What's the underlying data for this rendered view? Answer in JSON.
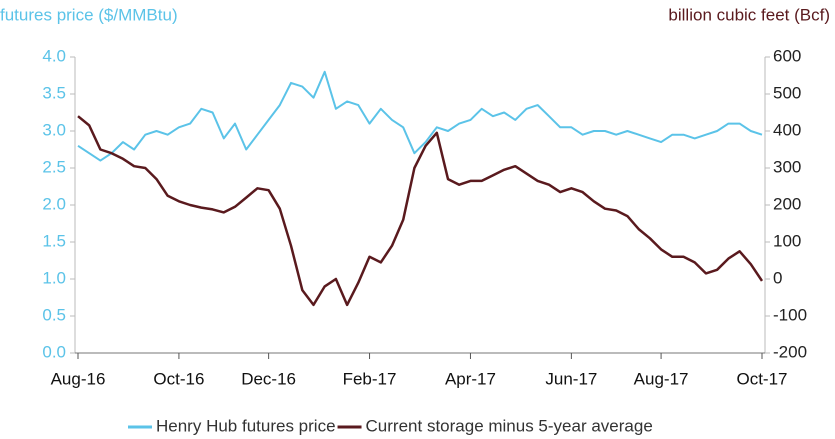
{
  "chart_data": {
    "type": "line",
    "y_label": "futures price ($/MMBtu)",
    "y2_label": "billion cubic feet (Bcf)",
    "categories": [
      "Aug-16",
      null,
      null,
      null,
      null,
      null,
      null,
      null,
      null,
      "Oct-16",
      null,
      null,
      null,
      null,
      null,
      null,
      null,
      "Dec-16",
      null,
      null,
      null,
      null,
      null,
      null,
      null,
      null,
      "Feb-17",
      null,
      null,
      null,
      null,
      null,
      null,
      null,
      null,
      "Apr-17",
      null,
      null,
      null,
      null,
      null,
      null,
      null,
      null,
      "Jun-17",
      null,
      null,
      null,
      null,
      null,
      null,
      null,
      "Aug-17",
      null,
      null,
      null,
      null,
      null,
      null,
      null,
      null,
      "Oct-17"
    ],
    "series": [
      {
        "name": "Henry Hub futures price",
        "color": "#5bc3e8",
        "axis": "y",
        "values": [
          2.8,
          2.7,
          2.6,
          2.7,
          2.85,
          2.75,
          2.95,
          3.0,
          2.95,
          3.05,
          3.1,
          3.3,
          3.25,
          2.9,
          3.1,
          2.75,
          2.95,
          3.15,
          3.35,
          3.65,
          3.6,
          3.45,
          3.8,
          3.3,
          3.4,
          3.35,
          3.1,
          3.3,
          3.15,
          3.05,
          2.7,
          2.85,
          3.05,
          3.0,
          3.1,
          3.15,
          3.3,
          3.2,
          3.25,
          3.15,
          3.3,
          3.35,
          3.2,
          3.05,
          3.05,
          2.95,
          3.0,
          3.0,
          2.95,
          3.0,
          2.95,
          2.9,
          2.85,
          2.95,
          2.95,
          2.9,
          2.95,
          3.0,
          3.1,
          3.1,
          3.0,
          2.95
        ]
      },
      {
        "name": "Current storage minus 5-year average",
        "color": "#5a1a1e",
        "axis": "y2",
        "values": [
          440,
          415,
          350,
          340,
          325,
          305,
          300,
          270,
          225,
          210,
          200,
          193,
          188,
          180,
          195,
          220,
          245,
          240,
          190,
          90,
          -30,
          -70,
          -20,
          0,
          -70,
          -10,
          60,
          45,
          90,
          160,
          300,
          360,
          395,
          270,
          255,
          265,
          265,
          280,
          295,
          305,
          285,
          265,
          255,
          235,
          245,
          235,
          210,
          190,
          185,
          170,
          135,
          110,
          80,
          60,
          60,
          45,
          15,
          25,
          55,
          75,
          40,
          -5
        ]
      }
    ],
    "ylim": [
      0,
      4
    ],
    "yticks": [
      {
        "value": 0,
        "label": "0.0"
      },
      {
        "value": 0.5,
        "label": "0.5"
      },
      {
        "value": 1,
        "label": "1.0"
      },
      {
        "value": 1.5,
        "label": "1.5"
      },
      {
        "value": 2,
        "label": "2.0"
      },
      {
        "value": 2.5,
        "label": "2.5"
      },
      {
        "value": 3,
        "label": "3.0"
      },
      {
        "value": 3.5,
        "label": "3.5"
      },
      {
        "value": 4,
        "label": "4.0"
      }
    ],
    "y2lim": [
      -200,
      600
    ],
    "y2ticks": [
      -200,
      -100,
      0,
      100,
      200,
      300,
      400,
      500,
      600
    ],
    "grid": false,
    "legend": "bottom"
  }
}
